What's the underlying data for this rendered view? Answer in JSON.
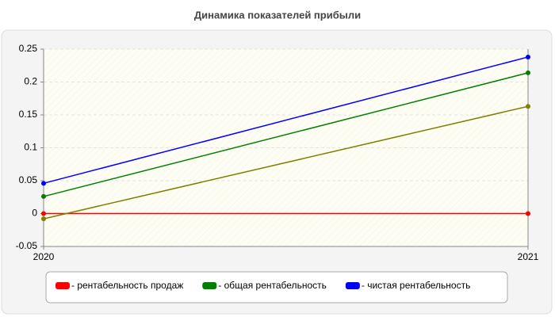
{
  "chart_data": {
    "type": "line",
    "title": "Динамика показателей прибыли",
    "categories": [
      "2020",
      "2021"
    ],
    "series": [
      {
        "name": "- рентабельность продаж",
        "color": "#ff0000",
        "values": [
          0,
          0
        ]
      },
      {
        "name": "- общая рентабельность",
        "color": "#008000",
        "values": [
          0.026,
          0.214
        ]
      },
      {
        "name": "- чистая рентабельность",
        "color": "#0000ff",
        "values": [
          0.046,
          0.238
        ]
      },
      {
        "color": "#808000",
        "values": [
          -0.008,
          0.163
        ]
      }
    ],
    "ylim": [
      -0.05,
      0.25
    ],
    "yticks": [
      -0.05,
      0,
      0.05,
      0.1,
      0.15,
      0.2,
      0.25
    ],
    "grid": true
  }
}
